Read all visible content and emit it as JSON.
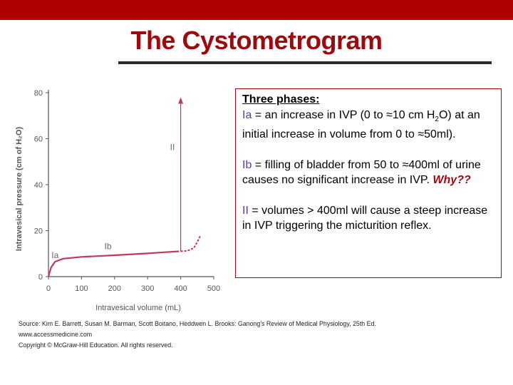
{
  "slide": {
    "title": "The Cystometrogram",
    "accent_color": "#b00000",
    "title_color": "#9d0a0e"
  },
  "textbox": {
    "heading": "Three phases:",
    "phase_ia": {
      "term": "Ia",
      "text_before_sub": " = an increase in IVP (0 to ≈10 cm H",
      "subscript": "2",
      "text_after_sub": "O) at an initial increase in volume from 0 to ≈50ml)."
    },
    "phase_ib": {
      "term": "Ib",
      "text": " = filling of bladder from 50 to ≈400ml of urine causes no significant increase in IVP. ",
      "why": "Why??"
    },
    "phase_ii": {
      "term": "II",
      "text": " = volumes > 400ml will cause a steep increase in IVP triggering the micturition reflex."
    }
  },
  "figure": {
    "type": "line",
    "ylabel": "Intravesical pressure (cm of H₂O)",
    "xlabel": "Intravesical volume (mL)",
    "xlim": [
      0,
      500
    ],
    "ylim": [
      0,
      80
    ],
    "x_ticks": [
      "0",
      "100",
      "200",
      "300",
      "400",
      "500"
    ],
    "y_ticks": [
      "0",
      "20",
      "40",
      "60",
      "80"
    ],
    "annotations": [
      {
        "text": "Ia",
        "x": 20,
        "y": 8
      },
      {
        "text": "Ib",
        "x": 180,
        "y": 12
      },
      {
        "text": "II",
        "x": 375,
        "y": 55
      }
    ],
    "curve": [
      {
        "x": 0,
        "y": 0
      },
      {
        "x": 8,
        "y": 4
      },
      {
        "x": 20,
        "y": 6.5
      },
      {
        "x": 45,
        "y": 7.8
      },
      {
        "x": 100,
        "y": 8.6
      },
      {
        "x": 200,
        "y": 9.3
      },
      {
        "x": 300,
        "y": 10.1
      },
      {
        "x": 350,
        "y": 10.6
      },
      {
        "x": 395,
        "y": 11.0
      }
    ],
    "spike": {
      "x": 400,
      "y_start": 11,
      "y_end": 78
    },
    "tail": [
      {
        "x": 400,
        "y": 11
      },
      {
        "x": 420,
        "y": 11.2
      },
      {
        "x": 440,
        "y": 12.5
      },
      {
        "x": 450,
        "y": 15
      },
      {
        "x": 460,
        "y": 18
      }
    ],
    "line_color": "#c0395a"
  },
  "source": {
    "line1": "Source: Kim E. Barrett, Susan M. Barman, Scott Boitano, Heddwen L. Brooks: Ganong's Review of Medical Physiology, 25th Ed.",
    "line2": "www.accessmedicine.com",
    "line3": "Copyright © McGraw-Hill Education.  All rights reserved."
  }
}
